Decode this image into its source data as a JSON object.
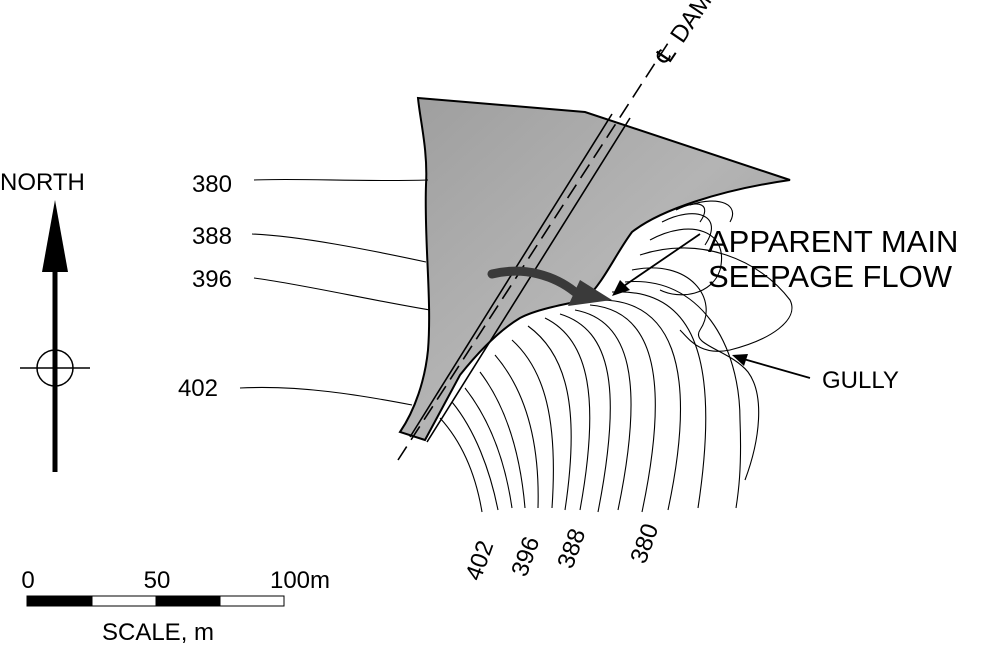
{
  "north_label": "NORTH",
  "dam_label": "DAM",
  "centerline_symbol": "℄",
  "west_contours": [
    "380",
    "388",
    "396",
    "402"
  ],
  "south_contours": [
    "402",
    "396",
    "388",
    "380"
  ],
  "seepage_label": {
    "line1": "APPARENT MAIN",
    "line2": "SEEPAGE FLOW"
  },
  "gully_label": "GULLY",
  "scale": {
    "ticks": [
      "0",
      "50",
      "100m"
    ],
    "caption": "SCALE, m"
  },
  "colors": {
    "reservoir_fill": "#a6a6a6",
    "ink": "#000000",
    "flow_arrow": "#3a3a3a"
  },
  "icons": [
    "north-arrow-icon",
    "crosshair-circle-icon",
    "flow-arrow-icon"
  ]
}
